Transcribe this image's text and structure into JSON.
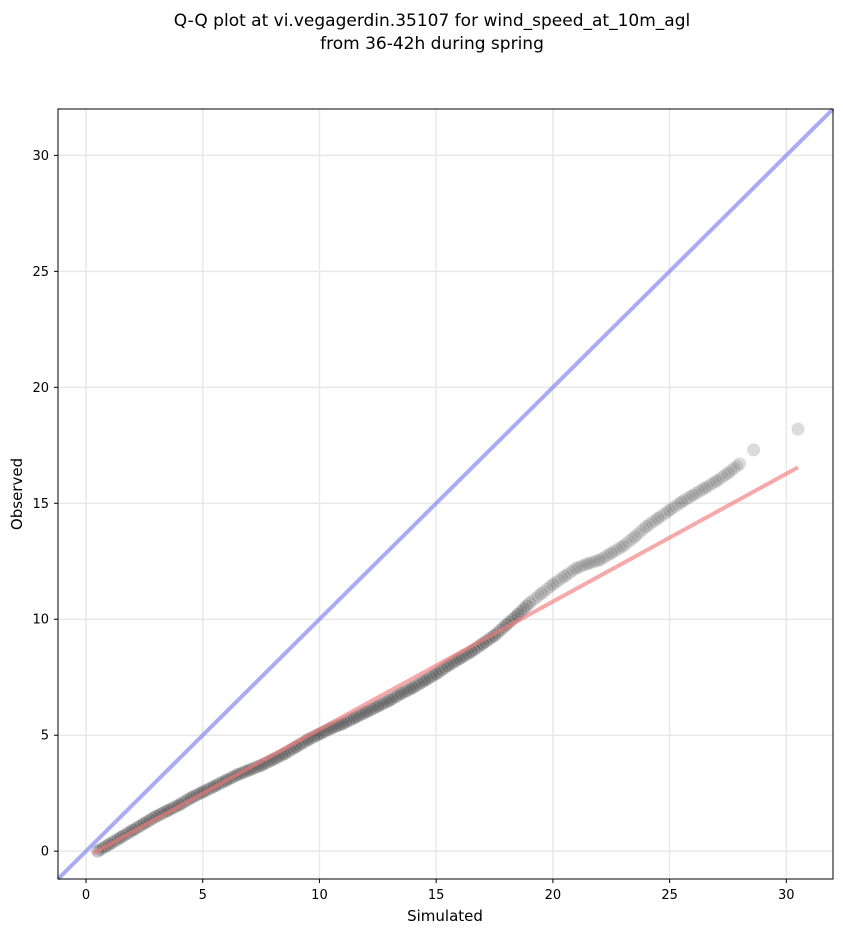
{
  "chart_data": {
    "type": "scatter",
    "title_line1": "Q-Q plot at vi.vegagerdin.35107 for wind_speed_at_10m_agl",
    "title_line2": "from 36-42h during spring",
    "xlabel": "Simulated",
    "ylabel": "Observed",
    "xlim": [
      -1.2,
      32
    ],
    "ylim": [
      -1.2,
      32
    ],
    "xticks": [
      0,
      5,
      10,
      15,
      20,
      25,
      30
    ],
    "yticks": [
      0,
      5,
      10,
      15,
      20,
      25,
      30
    ],
    "xtick_labels": [
      "0",
      "5",
      "10",
      "15",
      "20",
      "25",
      "30"
    ],
    "ytick_labels": [
      "0",
      "5",
      "10",
      "15",
      "20",
      "25",
      "30"
    ],
    "grid": true,
    "colors": {
      "points": "#000000",
      "identity_line": "#7b80f0",
      "fit_line": "#f07b7b",
      "grid": "#e8e8e8"
    },
    "identity_line": {
      "x": [
        -1.2,
        32
      ],
      "y": [
        -1.2,
        32
      ]
    },
    "fit_line": {
      "x": [
        0.3,
        30.5
      ],
      "y": [
        -0.1,
        16.55
      ]
    },
    "series": [
      {
        "x": [
          0.5,
          1,
          1.5,
          2,
          2.5,
          3,
          3.5,
          4,
          4.5,
          5,
          5.5,
          6,
          6.5,
          7,
          7.5,
          8,
          8.5,
          9,
          9.5,
          10,
          10.5,
          11,
          11.5,
          12,
          12.5,
          13,
          13.5,
          14,
          14.5,
          15,
          15.5,
          16,
          16.5,
          17,
          17.5,
          18,
          18.5,
          19,
          19.5,
          20,
          20.5,
          21,
          21.5,
          22,
          22.5,
          23,
          23.5,
          24,
          24.5,
          25,
          25.5,
          26,
          26.5,
          27,
          27.5,
          28,
          28.6,
          30.5
        ],
        "y": [
          0.0,
          0.3,
          0.6,
          0.9,
          1.2,
          1.5,
          1.75,
          2.0,
          2.3,
          2.55,
          2.8,
          3.05,
          3.3,
          3.5,
          3.7,
          3.95,
          4.2,
          4.5,
          4.8,
          5.05,
          5.3,
          5.5,
          5.75,
          6.0,
          6.25,
          6.5,
          6.8,
          7.05,
          7.35,
          7.65,
          8.0,
          8.3,
          8.6,
          8.95,
          9.3,
          9.75,
          10.2,
          10.7,
          11.1,
          11.5,
          11.85,
          12.2,
          12.4,
          12.55,
          12.85,
          13.15,
          13.55,
          14.0,
          14.35,
          14.7,
          15.05,
          15.35,
          15.65,
          15.95,
          16.3,
          16.7,
          17.3,
          18.2
        ]
      }
    ]
  }
}
